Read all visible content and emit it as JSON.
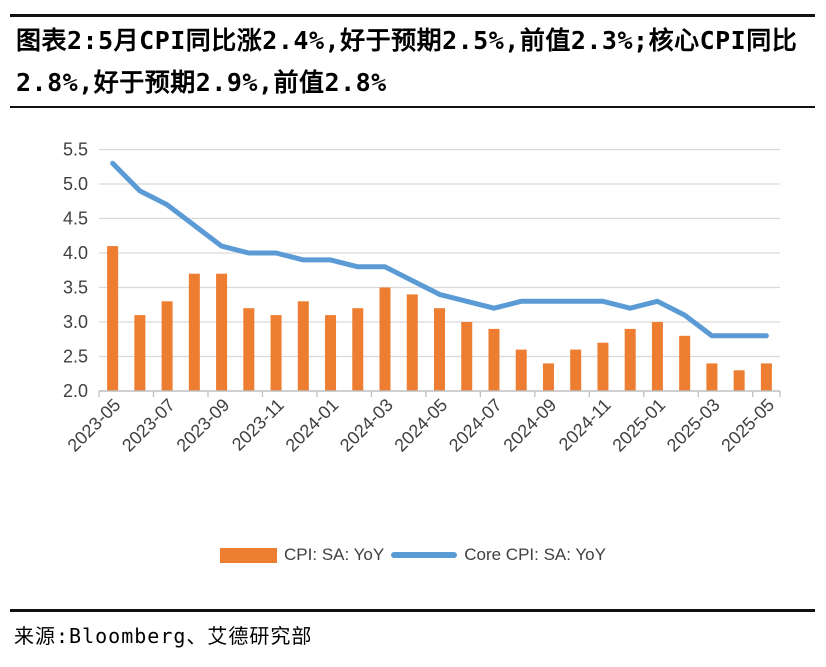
{
  "title": "图表2:5月CPI同比涨2.4%,好于预期2.5%,前值2.3%;核心CPI同比2.8%,好于预期2.9%,前值2.8%",
  "source": "来源:Bloomberg、艾德研究部",
  "colors": {
    "bar": "#ED7D31",
    "line": "#5B9BD5",
    "axis_text": "#404040",
    "gridline": "#D9D9D9",
    "axis_line": "#BFBFBF",
    "rule": "#111111"
  },
  "legend": [
    {
      "label": "CPI: SA: YoY",
      "swatch": "bar"
    },
    {
      "label": "Core CPI: SA: YoY",
      "swatch": "line"
    }
  ],
  "chart_data": {
    "type": "bar",
    "title": "",
    "xlabel": "",
    "ylabel": "",
    "categories": [
      "2023-05",
      "2023-06",
      "2023-07",
      "2023-08",
      "2023-09",
      "2023-10",
      "2023-11",
      "2023-12",
      "2024-01",
      "2024-02",
      "2024-03",
      "2024-04",
      "2024-05",
      "2024-06",
      "2024-07",
      "2024-08",
      "2024-09",
      "2024-10",
      "2024-11",
      "2024-12",
      "2025-01",
      "2025-02",
      "2025-03",
      "2025-04",
      "2025-05"
    ],
    "series": [
      {
        "name": "CPI: SA: YoY",
        "type": "bar",
        "color": "#ED7D31",
        "values": [
          4.1,
          3.1,
          3.3,
          3.7,
          3.7,
          3.2,
          3.1,
          3.3,
          3.1,
          3.2,
          3.5,
          3.4,
          3.2,
          3.0,
          2.9,
          2.6,
          2.4,
          2.6,
          2.7,
          2.9,
          3.0,
          2.8,
          2.4,
          2.3,
          2.4
        ]
      },
      {
        "name": "Core CPI: SA: YoY",
        "type": "line",
        "color": "#5B9BD5",
        "values": [
          5.3,
          4.9,
          4.7,
          4.4,
          4.1,
          4.0,
          4.0,
          3.9,
          3.9,
          3.8,
          3.8,
          3.6,
          3.4,
          3.3,
          3.2,
          3.3,
          3.3,
          3.3,
          3.3,
          3.2,
          3.3,
          3.1,
          2.8,
          2.8,
          2.8
        ]
      }
    ],
    "ylim": [
      2.0,
      5.5
    ],
    "ytick_step": 0.5,
    "ytick_labels": [
      "2.0",
      "2.5",
      "3.0",
      "3.5",
      "4.0",
      "4.5",
      "5.0",
      "5.5"
    ],
    "xtick_every": 2,
    "grid": true,
    "legend_position": "bottom"
  }
}
